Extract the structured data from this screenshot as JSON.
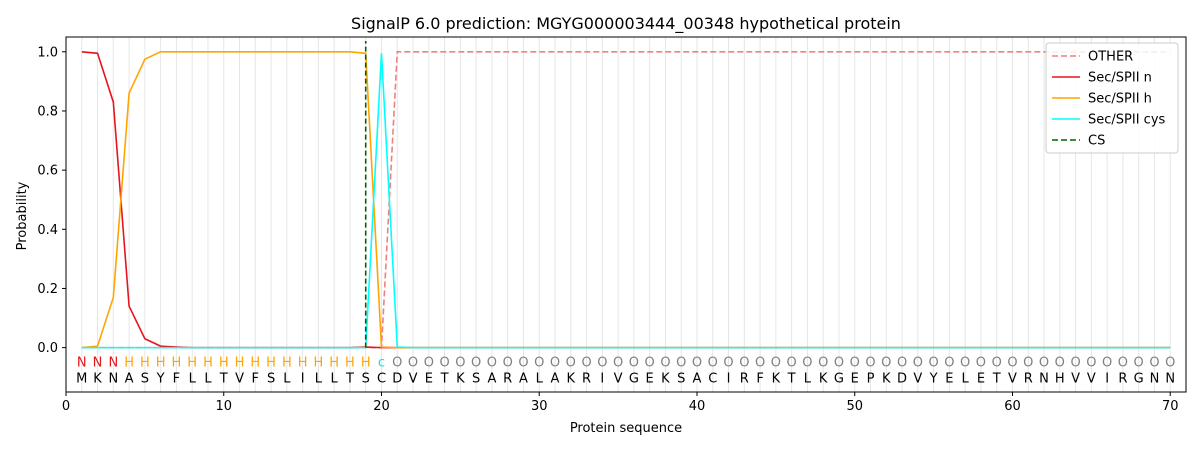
{
  "chart_data": {
    "type": "line",
    "title": "SignalP 6.0 prediction: MGYG000003444_00348 hypothetical protein",
    "xlabel": "Protein sequence",
    "ylabel": "Probability",
    "xlim": [
      0,
      71
    ],
    "ylim": [
      -0.15,
      1.05
    ],
    "xticks": [
      0,
      10,
      20,
      30,
      40,
      50,
      60,
      70
    ],
    "yticks": [
      0.0,
      0.2,
      0.4,
      0.6,
      0.8,
      1.0
    ],
    "ytick_labels": [
      "0.0",
      "0.2",
      "0.4",
      "0.6",
      "0.8",
      "1.0"
    ],
    "grid": "vertical lines at each residue",
    "legend_position": "top-right",
    "sequence": [
      "M",
      "K",
      "N",
      "A",
      "S",
      "Y",
      "F",
      "L",
      "L",
      "T",
      "V",
      "F",
      "S",
      "L",
      "I",
      "L",
      "L",
      "T",
      "S",
      "C",
      "D",
      "V",
      "E",
      "T",
      "K",
      "S",
      "A",
      "R",
      "A",
      "L",
      "A",
      "K",
      "R",
      "I",
      "V",
      "G",
      "E",
      "K",
      "S",
      "A",
      "C",
      "I",
      "R",
      "F",
      "K",
      "T",
      "L",
      "K",
      "G",
      "E",
      "P",
      "K",
      "D",
      "V",
      "Y",
      "E",
      "L",
      "E",
      "T",
      "V",
      "R",
      "N",
      "H",
      "V",
      "V",
      "I",
      "R",
      "G",
      "N",
      "N"
    ],
    "predicted_labels": [
      "N",
      "N",
      "N",
      "H",
      "H",
      "H",
      "H",
      "H",
      "H",
      "H",
      "H",
      "H",
      "H",
      "H",
      "H",
      "H",
      "H",
      "H",
      "H",
      "C",
      "O",
      "O",
      "O",
      "O",
      "O",
      "O",
      "O",
      "O",
      "O",
      "O",
      "O",
      "O",
      "O",
      "O",
      "O",
      "O",
      "O",
      "O",
      "O",
      "O",
      "O",
      "O",
      "O",
      "O",
      "O",
      "O",
      "O",
      "O",
      "O",
      "O",
      "O",
      "O",
      "O",
      "O",
      "O",
      "O",
      "O",
      "O",
      "O",
      "O",
      "O",
      "O",
      "O",
      "O",
      "O",
      "O",
      "O",
      "O",
      "O",
      "O"
    ],
    "label_colors": {
      "N": "#e8141c",
      "H": "#ffa500",
      "C": "#00e5e5",
      "O": "#808080"
    },
    "series": [
      {
        "name": "OTHER",
        "color": "#f07f7f",
        "dash": "dashed",
        "values": [
          0,
          0,
          0,
          0,
          0,
          0,
          0,
          0,
          0,
          0,
          0,
          0,
          0,
          0,
          0,
          0,
          0,
          0,
          0,
          0,
          1,
          1,
          1,
          1,
          1,
          1,
          1,
          1,
          1,
          1,
          1,
          1,
          1,
          1,
          1,
          1,
          1,
          1,
          1,
          1,
          1,
          1,
          1,
          1,
          1,
          1,
          1,
          1,
          1,
          1,
          1,
          1,
          1,
          1,
          1,
          1,
          1,
          1,
          1,
          1,
          1,
          1,
          1,
          1,
          1,
          1,
          1,
          1,
          1,
          1
        ]
      },
      {
        "name": "Sec/SPII n",
        "color": "#e8141c",
        "dash": "solid",
        "values": [
          1.0,
          0.995,
          0.83,
          0.14,
          0.03,
          0.005,
          0.002,
          0,
          0,
          0,
          0,
          0,
          0,
          0,
          0,
          0,
          0,
          0,
          0.002,
          0,
          0,
          0,
          0,
          0,
          0,
          0,
          0,
          0,
          0,
          0,
          0,
          0,
          0,
          0,
          0,
          0,
          0,
          0,
          0,
          0,
          0,
          0,
          0,
          0,
          0,
          0,
          0,
          0,
          0,
          0,
          0,
          0,
          0,
          0,
          0,
          0,
          0,
          0,
          0,
          0,
          0,
          0,
          0,
          0,
          0,
          0,
          0,
          0,
          0,
          0
        ]
      },
      {
        "name": "Sec/SPII h",
        "color": "#ffa500",
        "dash": "solid",
        "values": [
          0,
          0.005,
          0.17,
          0.86,
          0.975,
          1.0,
          1.0,
          1.0,
          1.0,
          1.0,
          1.0,
          1.0,
          1.0,
          1.0,
          1.0,
          1.0,
          1.0,
          1.0,
          0.995,
          0.002,
          0,
          0,
          0,
          0,
          0,
          0,
          0,
          0,
          0,
          0,
          0,
          0,
          0,
          0,
          0,
          0,
          0,
          0,
          0,
          0,
          0,
          0,
          0,
          0,
          0,
          0,
          0,
          0,
          0,
          0,
          0,
          0,
          0,
          0,
          0,
          0,
          0,
          0,
          0,
          0,
          0,
          0,
          0,
          0,
          0,
          0,
          0,
          0,
          0,
          0
        ]
      },
      {
        "name": "Sec/SPII cys",
        "color": "#00ffff",
        "dash": "solid",
        "values": [
          0,
          0,
          0,
          0,
          0,
          0,
          0,
          0,
          0,
          0,
          0,
          0,
          0,
          0,
          0,
          0,
          0,
          0,
          0,
          0.995,
          0.002,
          0,
          0,
          0,
          0,
          0,
          0,
          0,
          0,
          0,
          0,
          0,
          0,
          0,
          0,
          0,
          0,
          0,
          0,
          0,
          0,
          0,
          0,
          0,
          0,
          0,
          0,
          0,
          0,
          0,
          0,
          0,
          0,
          0,
          0,
          0,
          0,
          0,
          0,
          0,
          0,
          0,
          0,
          0,
          0,
          0,
          0,
          0,
          0,
          0
        ]
      },
      {
        "name": "CS",
        "color": "#006400",
        "dash": "dashed",
        "type": "vline",
        "x": 19
      }
    ]
  }
}
